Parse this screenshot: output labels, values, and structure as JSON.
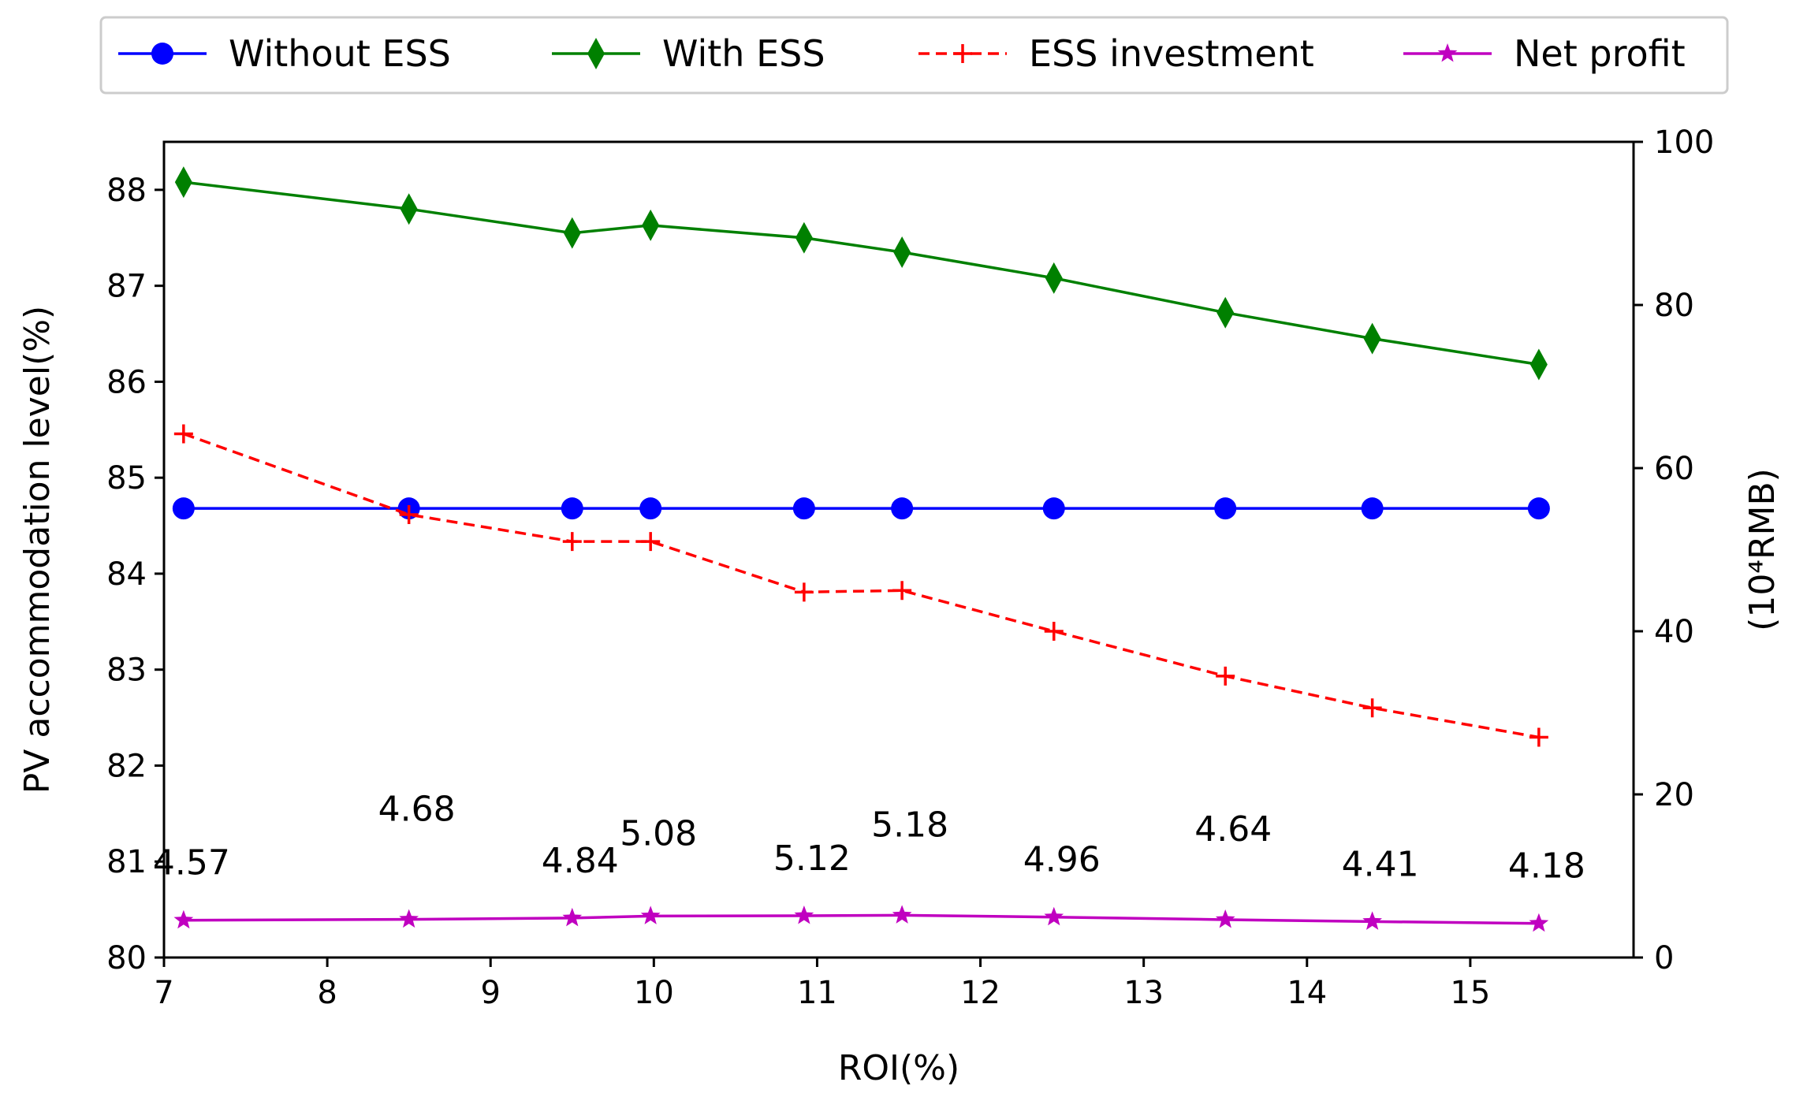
{
  "chart_data": {
    "type": "line",
    "title": "",
    "xlabel": "ROI(%)",
    "ylabel_left": "PV accommodation level(%)",
    "ylabel_right": "(10⁴RMB)",
    "xlim": [
      7,
      16
    ],
    "ylim_left": [
      80,
      88.5
    ],
    "ylim_right": [
      0,
      100
    ],
    "x_ticks": [
      7,
      8,
      9,
      10,
      11,
      12,
      13,
      14,
      15
    ],
    "y_ticks_left": [
      80,
      81,
      82,
      83,
      84,
      85,
      86,
      87,
      88
    ],
    "y_ticks_right": [
      0,
      20,
      40,
      60,
      80,
      100
    ],
    "grid": false,
    "legend_position": "top",
    "x": [
      7.12,
      8.5,
      9.5,
      9.98,
      10.92,
      11.52,
      12.45,
      13.5,
      14.4,
      15.42
    ],
    "series": [
      {
        "name": "Without ESS",
        "axis": "left",
        "color": "#0000ff",
        "marker": "circle",
        "line": "solid",
        "values": [
          84.68,
          84.68,
          84.68,
          84.68,
          84.68,
          84.68,
          84.68,
          84.68,
          84.68,
          84.68
        ]
      },
      {
        "name": "With ESS",
        "axis": "left",
        "color": "#008000",
        "marker": "diamond",
        "line": "solid",
        "values": [
          88.08,
          87.8,
          87.55,
          87.63,
          87.5,
          87.35,
          87.08,
          86.72,
          86.45,
          86.18
        ]
      },
      {
        "name": "ESS investment",
        "axis": "right",
        "color": "#ff0000",
        "marker": "plus",
        "line": "dashed",
        "values": [
          64.2,
          54.3,
          51.0,
          51.0,
          44.8,
          45.0,
          40.0,
          34.5,
          30.6,
          27.0
        ]
      },
      {
        "name": "Net profit",
        "axis": "right",
        "color": "#c000c0",
        "marker": "star",
        "line": "solid",
        "values": [
          4.57,
          4.68,
          4.84,
          5.08,
          5.12,
          5.18,
          4.96,
          4.64,
          4.41,
          4.18
        ],
        "labels": [
          "4.57",
          "4.68",
          "4.84",
          "5.08",
          "5.12",
          "5.18",
          "4.96",
          "4.64",
          "4.41",
          "4.18"
        ]
      }
    ]
  }
}
